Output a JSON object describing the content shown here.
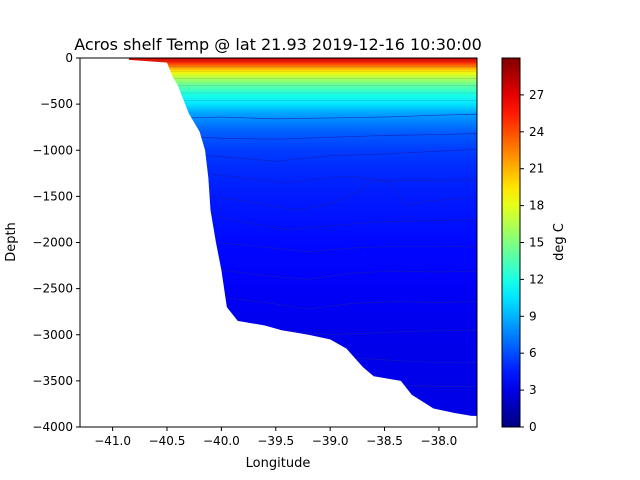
{
  "chart_data": {
    "type": "heatmap",
    "title": "Acros shelf Temp @ lat 21.93 2019-12-16 10:30:00",
    "xlabel": "Longitude",
    "ylabel": "Depth",
    "xlim": [
      -41.3,
      -37.65
    ],
    "ylim": [
      -4000,
      0
    ],
    "x_ticks": [
      -41.0,
      -40.5,
      -40.0,
      -39.5,
      -39.0,
      -38.5,
      -38.0
    ],
    "x_tick_labels": [
      "−41.0",
      "−40.5",
      "−40.0",
      "−39.5",
      "−39.0",
      "−38.5",
      "−38.0"
    ],
    "y_ticks": [
      0,
      -500,
      -1000,
      -1500,
      -2000,
      -2500,
      -3000,
      -3500,
      -4000
    ],
    "y_tick_labels": [
      "0",
      "−500",
      "−1000",
      "−1500",
      "−2000",
      "−2500",
      "−3000",
      "−3500",
      "−4000"
    ],
    "colorbar": {
      "label": "deg C",
      "range": [
        0,
        30
      ],
      "ticks": [
        0,
        3,
        6,
        9,
        12,
        15,
        18,
        21,
        24,
        27
      ],
      "tick_labels": [
        "0",
        "3",
        "6",
        "9",
        "12",
        "15",
        "18",
        "21",
        "24",
        "27"
      ],
      "colormap": "jet"
    },
    "bathymetry": [
      [
        -40.85,
        -20
      ],
      [
        -40.5,
        -50
      ],
      [
        -40.45,
        -200
      ],
      [
        -40.4,
        -300
      ],
      [
        -40.3,
        -600
      ],
      [
        -40.2,
        -800
      ],
      [
        -40.15,
        -1000
      ],
      [
        -40.12,
        -1300
      ],
      [
        -40.1,
        -1650
      ],
      [
        -40.05,
        -2000
      ],
      [
        -40.0,
        -2300
      ],
      [
        -39.95,
        -2700
      ],
      [
        -39.85,
        -2850
      ],
      [
        -39.6,
        -2900
      ],
      [
        -39.45,
        -2950
      ],
      [
        -39.2,
        -3000
      ],
      [
        -39.0,
        -3050
      ],
      [
        -38.85,
        -3150
      ],
      [
        -38.7,
        -3350
      ],
      [
        -38.6,
        -3450
      ],
      [
        -38.35,
        -3500
      ],
      [
        -38.25,
        -3650
      ],
      [
        -38.05,
        -3800
      ],
      [
        -37.85,
        -3850
      ],
      [
        -37.7,
        -3880
      ]
    ],
    "temperature_profile": [
      [
        0,
        28
      ],
      [
        50,
        25
      ],
      [
        100,
        22
      ],
      [
        150,
        19
      ],
      [
        200,
        17
      ],
      [
        300,
        14
      ],
      [
        400,
        12
      ],
      [
        500,
        10.5
      ],
      [
        600,
        8.5
      ],
      [
        800,
        6.5
      ],
      [
        1000,
        5.5
      ],
      [
        1200,
        5
      ],
      [
        1500,
        4.5
      ],
      [
        2000,
        4
      ],
      [
        2500,
        3.5
      ],
      [
        3000,
        3.2
      ],
      [
        4000,
        3
      ]
    ]
  }
}
